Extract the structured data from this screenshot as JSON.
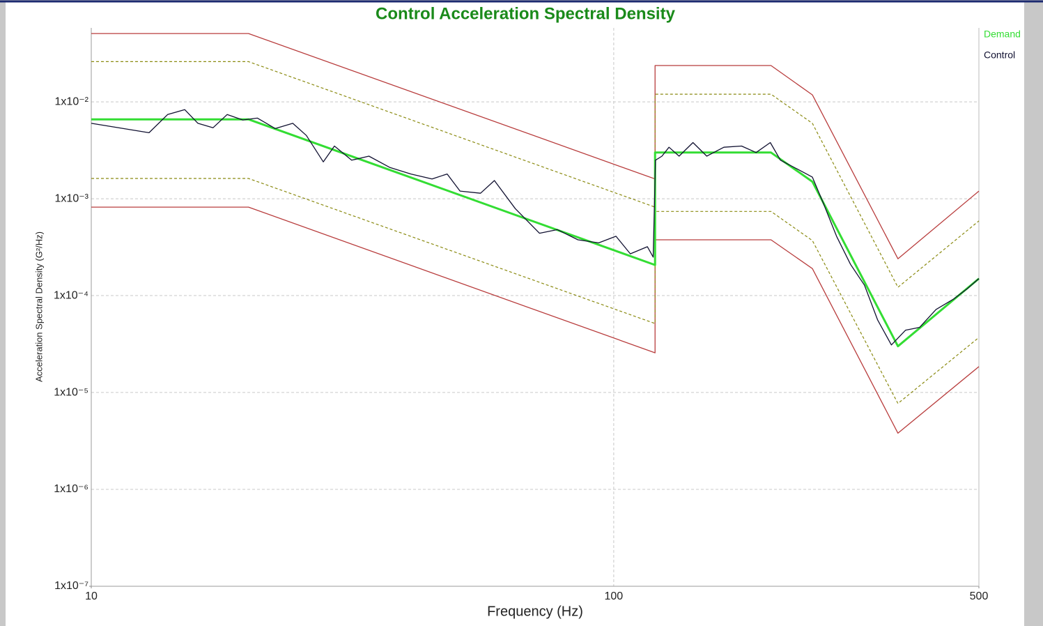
{
  "chart_data": {
    "type": "line",
    "title": "Control Acceleration Spectral Density",
    "xlabel": "Frequency (Hz)",
    "ylabel": "Acceleration Spectral Density (G²/Hz)",
    "xscale": "log",
    "yscale": "log",
    "grid": true,
    "legend": "right",
    "xlim": [
      10,
      500
    ],
    "xticks": [
      10,
      100,
      500
    ],
    "ylim": [
      1e-07,
      0.058
    ],
    "yticks": [
      {
        "value": 1e-07,
        "label": "1x10⁻⁷"
      },
      {
        "value": 1e-06,
        "label": "1x10⁻⁶"
      },
      {
        "value": 1e-05,
        "label": "1x10⁻⁵"
      },
      {
        "value": 0.0001,
        "label": "1x10⁻⁴"
      },
      {
        "value": 0.001,
        "label": "1x10⁻³"
      },
      {
        "value": 0.01,
        "label": "1x10⁻²"
      }
    ],
    "series": [
      {
        "color": "#b83c3c",
        "style": "solid",
        "x": [
          10,
          20,
          120,
          120,
          200,
          240,
          350,
          500
        ],
        "values": [
          0.0507,
          0.0507,
          0.0016,
          0.0237,
          0.0237,
          0.0118,
          0.00024,
          0.0012
        ]
      },
      {
        "color": "#b83c3c",
        "style": "solid",
        "x": [
          10,
          20,
          120,
          120,
          200,
          240,
          350,
          500
        ],
        "values": [
          0.00082,
          0.00082,
          2.57e-05,
          0.000377,
          0.000377,
          0.00019,
          3.8e-06,
          1.85e-05
        ]
      },
      {
        "color": "#8a8a10",
        "style": "dashed",
        "x": [
          10,
          20,
          120,
          120,
          200,
          240,
          350,
          500
        ],
        "values": [
          0.026,
          0.026,
          0.00082,
          0.012,
          0.012,
          0.006,
          0.000122,
          0.00059
        ]
      },
      {
        "color": "#8a8a10",
        "style": "dashed",
        "x": [
          10,
          20,
          120,
          120,
          200,
          240,
          350,
          500
        ],
        "values": [
          0.00162,
          0.00162,
          5.15e-05,
          0.00074,
          0.00074,
          0.00037,
          7.7e-06,
          3.7e-05
        ]
      },
      {
        "name": "Demand",
        "color": "#33dd33",
        "style": "thick",
        "x": [
          10,
          20,
          120,
          120,
          200,
          240,
          350,
          500
        ],
        "values": [
          0.0066,
          0.0066,
          0.000207,
          0.003,
          0.003,
          0.0015,
          3e-05,
          0.00015
        ]
      },
      {
        "name": "Control",
        "color": "#101030",
        "style": "solid",
        "x": [
          10,
          12.9,
          14.0,
          15.1,
          16.0,
          17.1,
          18.2,
          19.5,
          20.8,
          22.5,
          24.3,
          25.8,
          27.8,
          29.2,
          31.5,
          34.0,
          37.3,
          40.9,
          44.9,
          48.0,
          50.8,
          55.6,
          59.1,
          64.8,
          72.1,
          78.0,
          85.4,
          93.6,
          101,
          107.6,
          116,
          119,
          120.2,
          123.7,
          127.6,
          133.4,
          141.8,
          150.7,
          162.5,
          175.7,
          187.3,
          199.4,
          208.5,
          225.5,
          240,
          251,
          267,
          284,
          302,
          320,
          340,
          362,
          385,
          414,
          447,
          475,
          500
        ],
        "values": [
          0.006,
          0.0048,
          0.0074,
          0.0083,
          0.006,
          0.0054,
          0.0074,
          0.0065,
          0.0068,
          0.0053,
          0.006,
          0.0045,
          0.0024,
          0.0035,
          0.0025,
          0.00275,
          0.0021,
          0.0018,
          0.0016,
          0.0018,
          0.0012,
          0.00114,
          0.00154,
          0.00079,
          0.00044,
          0.00048,
          0.000377,
          0.00035,
          0.00041,
          0.00027,
          0.00032,
          0.00025,
          0.0025,
          0.00275,
          0.0034,
          0.00275,
          0.0038,
          0.00275,
          0.0034,
          0.0035,
          0.003,
          0.0038,
          0.0025,
          0.002,
          0.00167,
          0.00094,
          0.00041,
          0.00021,
          0.000128,
          5.6e-05,
          3.1e-05,
          4.4e-05,
          4.7e-05,
          7.2e-05,
          9.2e-05,
          0.000118,
          0.00015
        ]
      }
    ]
  }
}
